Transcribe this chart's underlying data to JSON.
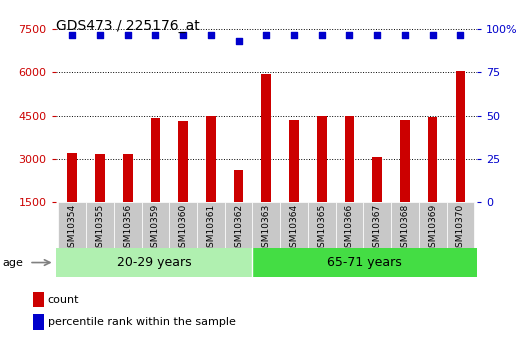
{
  "title": "GDS473 / 225176_at",
  "categories": [
    "GSM10354",
    "GSM10355",
    "GSM10356",
    "GSM10359",
    "GSM10360",
    "GSM10361",
    "GSM10362",
    "GSM10363",
    "GSM10364",
    "GSM10365",
    "GSM10366",
    "GSM10367",
    "GSM10368",
    "GSM10369",
    "GSM10370"
  ],
  "counts": [
    3200,
    3150,
    3150,
    4400,
    4300,
    4500,
    2600,
    5950,
    4350,
    4500,
    4500,
    3050,
    4350,
    4450,
    6050
  ],
  "percentile_ranks": [
    97,
    97,
    97,
    97,
    97,
    97,
    93,
    97,
    97,
    97,
    97,
    97,
    97,
    97,
    97
  ],
  "group1_label": "20-29 years",
  "group1_count": 7,
  "group2_label": "65-71 years",
  "group2_count": 8,
  "age_label": "age",
  "bar_color": "#cc0000",
  "dot_color": "#0000cc",
  "group1_bg": "#b0f0b0",
  "group2_bg": "#44dd44",
  "tick_bg": "#c8c8c8",
  "ylim_left": [
    1500,
    7500
  ],
  "ylim_right": [
    0,
    100
  ],
  "yticks_left": [
    1500,
    3000,
    4500,
    6000,
    7500
  ],
  "yticks_right": [
    0,
    25,
    50,
    75,
    100
  ],
  "left_tick_color": "#cc0000",
  "right_tick_color": "#0000cc",
  "legend_count_label": "count",
  "legend_pct_label": "percentile rank within the sample",
  "bar_width": 0.35
}
